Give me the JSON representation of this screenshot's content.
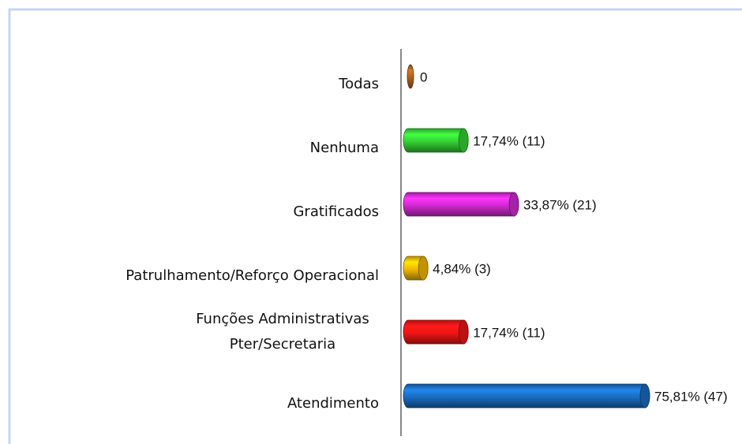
{
  "chart_data": {
    "type": "bar",
    "orientation": "horizontal",
    "categories": [
      "Todas",
      "Nenhuma",
      "Gratificados",
      "Patrulhamento/Reforço Operacional",
      [
        "Funções Administrativas",
        "Pter/Secretaria"
      ],
      "Atendimento"
    ],
    "values": [
      0,
      17.74,
      33.87,
      4.84,
      17.74,
      75.81
    ],
    "value_labels": [
      "0",
      "17,74% (11)",
      "33,87% (21)",
      "4,84% (3)",
      "17,74% (11)",
      "75,81% (47)"
    ],
    "colors": [
      "#b0601e",
      "#35d135",
      "#d02ad0",
      "#f2b800",
      "#ee1515",
      "#1a6cc0"
    ]
  }
}
